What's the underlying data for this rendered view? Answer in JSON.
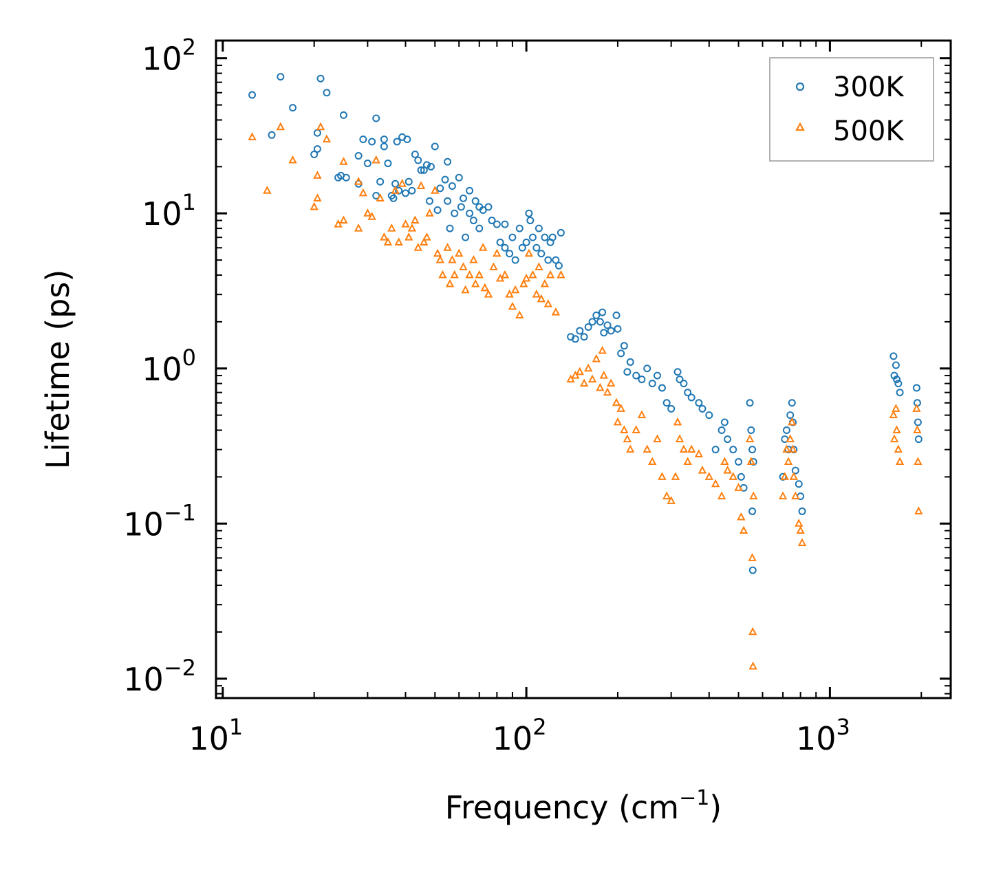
{
  "chart_data": {
    "type": "scatter",
    "xscale": "log",
    "yscale": "log",
    "xlim": [
      9.5,
      2500
    ],
    "ylim": [
      0.0075,
      130
    ],
    "xlabel": {
      "main": "Frequency (cm",
      "sup": "−1",
      "end": ")"
    },
    "ylabel": "Lifetime (ps)",
    "x_ticks": [
      {
        "value": 10,
        "base": "10",
        "exp": "1"
      },
      {
        "value": 100,
        "base": "10",
        "exp": "2"
      },
      {
        "value": 1000,
        "base": "10",
        "exp": "3"
      }
    ],
    "y_ticks": [
      {
        "value": 0.01,
        "base": "10",
        "exp": "−2"
      },
      {
        "value": 0.1,
        "base": "10",
        "exp": "−1"
      },
      {
        "value": 1,
        "base": "10",
        "exp": "0"
      },
      {
        "value": 10,
        "base": "10",
        "exp": "1"
      },
      {
        "value": 100,
        "base": "10",
        "exp": "2"
      }
    ],
    "legend_position": "top-right",
    "series": [
      {
        "name": "300K",
        "marker": "circle",
        "color": "#1f77b4",
        "points": [
          [
            12.5,
            58
          ],
          [
            14.5,
            32
          ],
          [
            15.5,
            76
          ],
          [
            17,
            48
          ],
          [
            20,
            24
          ],
          [
            20.5,
            26
          ],
          [
            20.5,
            33
          ],
          [
            21,
            74
          ],
          [
            22,
            60
          ],
          [
            24,
            17
          ],
          [
            24.5,
            17.5
          ],
          [
            25,
            43
          ],
          [
            25.5,
            17
          ],
          [
            28,
            15.5
          ],
          [
            28,
            23.5
          ],
          [
            29,
            30
          ],
          [
            30,
            21
          ],
          [
            31,
            29
          ],
          [
            32,
            13
          ],
          [
            32,
            41
          ],
          [
            33,
            16
          ],
          [
            34,
            30
          ],
          [
            34,
            27
          ],
          [
            35,
            21
          ],
          [
            36,
            13
          ],
          [
            36.5,
            12.5
          ],
          [
            37,
            15.5
          ],
          [
            37.5,
            29
          ],
          [
            38,
            14
          ],
          [
            39,
            31
          ],
          [
            40,
            13.5
          ],
          [
            40.5,
            30
          ],
          [
            41,
            16
          ],
          [
            42,
            14
          ],
          [
            43,
            24
          ],
          [
            44,
            22
          ],
          [
            45,
            19
          ],
          [
            46,
            19
          ],
          [
            47,
            20.5
          ],
          [
            48,
            12
          ],
          [
            48.5,
            20
          ],
          [
            50,
            27
          ],
          [
            51,
            10.5
          ],
          [
            52,
            14.5
          ],
          [
            54,
            16.5
          ],
          [
            55,
            21.5
          ],
          [
            55,
            12
          ],
          [
            56,
            8
          ],
          [
            57,
            15
          ],
          [
            58,
            10
          ],
          [
            60,
            17
          ],
          [
            61,
            11
          ],
          [
            62,
            12.5
          ],
          [
            63,
            7
          ],
          [
            65,
            10
          ],
          [
            65,
            14
          ],
          [
            67,
            9
          ],
          [
            68,
            12
          ],
          [
            70,
            11
          ],
          [
            70,
            8
          ],
          [
            72,
            10.5
          ],
          [
            75,
            11
          ],
          [
            77,
            9
          ],
          [
            80,
            8.5
          ],
          [
            82,
            6.5
          ],
          [
            85,
            8.5
          ],
          [
            85,
            6
          ],
          [
            88,
            5.5
          ],
          [
            90,
            7
          ],
          [
            92,
            5
          ],
          [
            95,
            8
          ],
          [
            97,
            6
          ],
          [
            100,
            6.5
          ],
          [
            102,
            10
          ],
          [
            103,
            9
          ],
          [
            105,
            7
          ],
          [
            108,
            6
          ],
          [
            110,
            8
          ],
          [
            112,
            5.5
          ],
          [
            115,
            7
          ],
          [
            118,
            5
          ],
          [
            120,
            6.5
          ],
          [
            122,
            7
          ],
          [
            125,
            5
          ],
          [
            128,
            4.6
          ],
          [
            130,
            7.5
          ],
          [
            140,
            1.6
          ],
          [
            145,
            1.55
          ],
          [
            150,
            1.75
          ],
          [
            155,
            1.6
          ],
          [
            160,
            1.85
          ],
          [
            165,
            2.0
          ],
          [
            170,
            2.2
          ],
          [
            175,
            2.0
          ],
          [
            178,
            2.3
          ],
          [
            180,
            1.7
          ],
          [
            185,
            1.9
          ],
          [
            190,
            1.75
          ],
          [
            198,
            2.2
          ],
          [
            200,
            1.8
          ],
          [
            205,
            1.25
          ],
          [
            210,
            1.4
          ],
          [
            215,
            0.95
          ],
          [
            220,
            1.1
          ],
          [
            230,
            0.9
          ],
          [
            240,
            0.85
          ],
          [
            250,
            1.0
          ],
          [
            260,
            0.8
          ],
          [
            270,
            0.9
          ],
          [
            280,
            0.75
          ],
          [
            290,
            0.6
          ],
          [
            300,
            0.55
          ],
          [
            315,
            0.95
          ],
          [
            320,
            0.85
          ],
          [
            330,
            0.8
          ],
          [
            340,
            0.7
          ],
          [
            350,
            0.65
          ],
          [
            370,
            0.6
          ],
          [
            380,
            0.55
          ],
          [
            400,
            0.5
          ],
          [
            420,
            0.3
          ],
          [
            440,
            0.4
          ],
          [
            450,
            0.45
          ],
          [
            460,
            0.35
          ],
          [
            480,
            0.3
          ],
          [
            500,
            0.25
          ],
          [
            510,
            0.2
          ],
          [
            520,
            0.17
          ],
          [
            545,
            0.6
          ],
          [
            550,
            0.4
          ],
          [
            555,
            0.3
          ],
          [
            555,
            0.12
          ],
          [
            557,
            0.05
          ],
          [
            560,
            0.25
          ],
          [
            700,
            0.2
          ],
          [
            710,
            0.35
          ],
          [
            720,
            0.4
          ],
          [
            730,
            0.3
          ],
          [
            740,
            0.5
          ],
          [
            750,
            0.6
          ],
          [
            755,
            0.45
          ],
          [
            760,
            0.3
          ],
          [
            770,
            0.22
          ],
          [
            790,
            0.18
          ],
          [
            800,
            0.15
          ],
          [
            810,
            0.12
          ],
          [
            1620,
            1.2
          ],
          [
            1630,
            0.9
          ],
          [
            1650,
            1.05
          ],
          [
            1660,
            0.85
          ],
          [
            1680,
            0.8
          ],
          [
            1700,
            0.7
          ],
          [
            1930,
            0.75
          ],
          [
            1940,
            0.6
          ],
          [
            1950,
            0.45
          ],
          [
            1960,
            0.35
          ]
        ]
      },
      {
        "name": "500K",
        "marker": "triangle",
        "color": "#ff7f0e",
        "points": [
          [
            12.5,
            31
          ],
          [
            14,
            14
          ],
          [
            15.5,
            36
          ],
          [
            17,
            22
          ],
          [
            20,
            11
          ],
          [
            20.5,
            12.5
          ],
          [
            20.5,
            17.5
          ],
          [
            21,
            36
          ],
          [
            22,
            30
          ],
          [
            24,
            8.5
          ],
          [
            25,
            9
          ],
          [
            25,
            21.5
          ],
          [
            28,
            8
          ],
          [
            28,
            16
          ],
          [
            29,
            13.5
          ],
          [
            30,
            10
          ],
          [
            31,
            9.5
          ],
          [
            32,
            22
          ],
          [
            33,
            12.5
          ],
          [
            34,
            7
          ],
          [
            35,
            6.5
          ],
          [
            36,
            8
          ],
          [
            37,
            14
          ],
          [
            38,
            6.5
          ],
          [
            39,
            15.5
          ],
          [
            40,
            8.5
          ],
          [
            41,
            7
          ],
          [
            42,
            8
          ],
          [
            43,
            9
          ],
          [
            44,
            6
          ],
          [
            45,
            15
          ],
          [
            46,
            6.5
          ],
          [
            47,
            7
          ],
          [
            48,
            10
          ],
          [
            50,
            14
          ],
          [
            51,
            5.5
          ],
          [
            52,
            5
          ],
          [
            53,
            4
          ],
          [
            55,
            6
          ],
          [
            56,
            3.5
          ],
          [
            57,
            5
          ],
          [
            58,
            4
          ],
          [
            60,
            5.5
          ],
          [
            62,
            4.5
          ],
          [
            63,
            3.2
          ],
          [
            65,
            4
          ],
          [
            67,
            5
          ],
          [
            68,
            3.5
          ],
          [
            70,
            4
          ],
          [
            72,
            6
          ],
          [
            73,
            3.3
          ],
          [
            75,
            3
          ],
          [
            78,
            4.5
          ],
          [
            80,
            5.5
          ],
          [
            82,
            3.8
          ],
          [
            85,
            4
          ],
          [
            88,
            3
          ],
          [
            90,
            2.5
          ],
          [
            92,
            3.2
          ],
          [
            95,
            2.2
          ],
          [
            98,
            3.5
          ],
          [
            100,
            3.8
          ],
          [
            102,
            5.5
          ],
          [
            105,
            4
          ],
          [
            108,
            3
          ],
          [
            110,
            4.5
          ],
          [
            112,
            2.8
          ],
          [
            115,
            3.5
          ],
          [
            118,
            2.6
          ],
          [
            120,
            4
          ],
          [
            125,
            2.3
          ],
          [
            130,
            4
          ],
          [
            140,
            0.85
          ],
          [
            145,
            0.9
          ],
          [
            150,
            0.95
          ],
          [
            155,
            0.8
          ],
          [
            160,
            1.0
          ],
          [
            165,
            0.85
          ],
          [
            170,
            1.15
          ],
          [
            175,
            0.75
          ],
          [
            178,
            1.3
          ],
          [
            180,
            0.9
          ],
          [
            185,
            0.7
          ],
          [
            190,
            0.8
          ],
          [
            198,
            0.6
          ],
          [
            200,
            0.45
          ],
          [
            205,
            0.55
          ],
          [
            210,
            0.4
          ],
          [
            215,
            0.35
          ],
          [
            220,
            0.3
          ],
          [
            230,
            0.4
          ],
          [
            240,
            0.5
          ],
          [
            250,
            0.3
          ],
          [
            260,
            0.25
          ],
          [
            270,
            0.35
          ],
          [
            280,
            0.2
          ],
          [
            290,
            0.15
          ],
          [
            300,
            0.14
          ],
          [
            310,
            0.2
          ],
          [
            315,
            0.45
          ],
          [
            320,
            0.35
          ],
          [
            330,
            0.3
          ],
          [
            340,
            0.25
          ],
          [
            350,
            0.3
          ],
          [
            370,
            0.28
          ],
          [
            380,
            0.22
          ],
          [
            400,
            0.2
          ],
          [
            420,
            0.18
          ],
          [
            440,
            0.15
          ],
          [
            450,
            0.25
          ],
          [
            460,
            0.22
          ],
          [
            480,
            0.2
          ],
          [
            500,
            0.17
          ],
          [
            510,
            0.11
          ],
          [
            520,
            0.09
          ],
          [
            545,
            0.35
          ],
          [
            550,
            0.25
          ],
          [
            555,
            0.06
          ],
          [
            557,
            0.02
          ],
          [
            558,
            0.012
          ],
          [
            560,
            0.15
          ],
          [
            700,
            0.15
          ],
          [
            710,
            0.2
          ],
          [
            720,
            0.3
          ],
          [
            730,
            0.25
          ],
          [
            740,
            0.35
          ],
          [
            750,
            0.45
          ],
          [
            755,
            0.3
          ],
          [
            760,
            0.2
          ],
          [
            770,
            0.15
          ],
          [
            790,
            0.1
          ],
          [
            800,
            0.09
          ],
          [
            810,
            0.075
          ],
          [
            1620,
            0.5
          ],
          [
            1630,
            0.35
          ],
          [
            1650,
            0.55
          ],
          [
            1660,
            0.4
          ],
          [
            1680,
            0.3
          ],
          [
            1700,
            0.25
          ],
          [
            1930,
            0.55
          ],
          [
            1940,
            0.4
          ],
          [
            1950,
            0.25
          ],
          [
            1960,
            0.12
          ]
        ]
      }
    ]
  }
}
